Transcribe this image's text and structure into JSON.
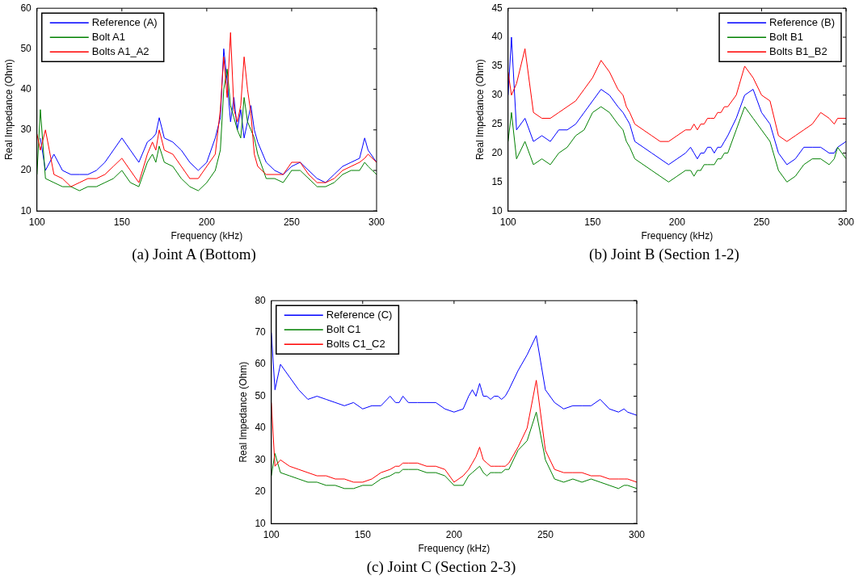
{
  "chart_data": [
    {
      "type": "line",
      "xlabel": "Frequency (kHz)",
      "ylabel": "Real Impedance (Ohm)",
      "annotations": [
        "(a) Joint A (Bottom)"
      ],
      "xlim": [
        100,
        300
      ],
      "xticks": [
        100,
        150,
        200,
        250,
        300
      ],
      "ylim": [
        10,
        60
      ],
      "yticks": [
        10,
        20,
        30,
        40,
        50,
        60
      ],
      "grid": false,
      "legend": "top left",
      "marker": "none",
      "x": [
        100,
        102,
        105,
        110,
        115,
        120,
        125,
        130,
        135,
        140,
        145,
        150,
        155,
        160,
        165,
        168,
        170,
        172,
        175,
        180,
        185,
        190,
        195,
        200,
        205,
        208,
        210,
        212,
        214,
        216,
        218,
        220,
        222,
        224,
        226,
        228,
        230,
        235,
        240,
        245,
        250,
        255,
        260,
        265,
        270,
        275,
        280,
        285,
        290,
        293,
        295,
        300
      ],
      "series": [
        {
          "name": "Reference (A)",
          "color": "#0000ff",
          "values": [
            null,
            28,
            20,
            24,
            20,
            19,
            19,
            19,
            20,
            22,
            25,
            28,
            25,
            22,
            27,
            28,
            29,
            33,
            28,
            27,
            25,
            22,
            20,
            22,
            28,
            33,
            50,
            42,
            32,
            38,
            30,
            35,
            28,
            32,
            36,
            30,
            27,
            22,
            20,
            19,
            21,
            22,
            20,
            18,
            17,
            19,
            21,
            22,
            23,
            28,
            25,
            22
          ]
        },
        {
          "name": "Bolt A1",
          "color": "#008000",
          "values": [
            19,
            35,
            18,
            17,
            16,
            16,
            15,
            16,
            16,
            17,
            18,
            20,
            17,
            16,
            22,
            24,
            22,
            26,
            22,
            21,
            18,
            16,
            15,
            17,
            20,
            25,
            40,
            45,
            36,
            33,
            30,
            28,
            38,
            32,
            30,
            28,
            24,
            18,
            18,
            17,
            20,
            20,
            18,
            16,
            16,
            17,
            19,
            20,
            20,
            22,
            21,
            19
          ]
        },
        {
          "name": "Bolts A1_A2",
          "color": "#ff0000",
          "values": [
            29,
            25,
            30,
            19,
            18,
            16,
            17,
            18,
            18,
            19,
            21,
            23,
            20,
            17,
            24,
            27,
            25,
            30,
            25,
            24,
            21,
            18,
            18,
            21,
            24,
            35,
            48,
            38,
            54,
            35,
            32,
            36,
            48,
            40,
            34,
            24,
            21,
            19,
            19,
            19,
            22,
            22,
            19,
            17,
            17,
            18,
            20,
            21,
            22,
            23,
            24,
            22
          ]
        }
      ]
    },
    {
      "type": "line",
      "xlabel": "Frequency (kHz)",
      "ylabel": "Real Impedance (Ohm)",
      "annotations": [
        "(b) Joint B (Section 1-2)"
      ],
      "xlim": [
        100,
        300
      ],
      "xticks": [
        100,
        150,
        200,
        250,
        300
      ],
      "ylim": [
        10,
        45
      ],
      "yticks": [
        10,
        15,
        20,
        25,
        30,
        35,
        40,
        45
      ],
      "grid": false,
      "legend": "top right",
      "marker": "none",
      "x": [
        100,
        102,
        105,
        110,
        115,
        120,
        125,
        130,
        135,
        140,
        145,
        150,
        155,
        160,
        165,
        168,
        170,
        172,
        175,
        180,
        185,
        190,
        195,
        200,
        205,
        208,
        210,
        212,
        214,
        216,
        218,
        220,
        222,
        224,
        226,
        228,
        230,
        235,
        240,
        245,
        250,
        255,
        260,
        265,
        270,
        275,
        280,
        285,
        290,
        293,
        295,
        300
      ],
      "series": [
        {
          "name": "Reference (B)",
          "color": "#0000ff",
          "values": [
            30,
            40,
            24,
            26,
            22,
            23,
            22,
            24,
            24,
            25,
            27,
            29,
            31,
            30,
            28,
            27,
            26,
            25,
            22,
            21,
            20,
            19,
            18,
            19,
            20,
            21,
            20,
            19,
            20,
            20,
            21,
            21,
            20,
            21,
            21,
            22,
            23,
            26,
            30,
            31,
            27,
            25,
            20,
            18,
            19,
            21,
            21,
            21,
            20,
            20,
            21,
            22
          ]
        },
        {
          "name": "Bolt B1",
          "color": "#008000",
          "values": [
            22,
            27,
            19,
            22,
            18,
            19,
            18,
            20,
            21,
            23,
            24,
            27,
            28,
            27,
            25,
            24,
            22,
            21,
            19,
            18,
            17,
            16,
            15,
            16,
            17,
            17,
            16,
            17,
            17,
            18,
            18,
            18,
            18,
            19,
            19,
            20,
            20,
            24,
            28,
            26,
            24,
            22,
            17,
            15,
            16,
            18,
            19,
            19,
            18,
            19,
            21,
            19
          ]
        },
        {
          "name": "Bolts B1_B2",
          "color": "#ff0000",
          "values": [
            34,
            30,
            32,
            38,
            27,
            26,
            26,
            27,
            28,
            29,
            31,
            33,
            36,
            34,
            31,
            30,
            28,
            27,
            25,
            24,
            23,
            22,
            22,
            23,
            24,
            24,
            25,
            24,
            25,
            25,
            26,
            26,
            26,
            27,
            27,
            28,
            28,
            30,
            35,
            33,
            30,
            29,
            23,
            22,
            23,
            24,
            25,
            27,
            26,
            25,
            26,
            26
          ]
        }
      ]
    },
    {
      "type": "line",
      "xlabel": "Frequency (kHz)",
      "ylabel": "Real Impedance (Ohm)",
      "annotations": [
        "(c) Joint C (Section 2-3)"
      ],
      "xlim": [
        100,
        300
      ],
      "xticks": [
        100,
        150,
        200,
        250,
        300
      ],
      "ylim": [
        10,
        80
      ],
      "yticks": [
        10,
        20,
        30,
        40,
        50,
        60,
        70,
        80
      ],
      "grid": false,
      "legend": "top left",
      "marker": "none",
      "x": [
        100,
        102,
        105,
        110,
        115,
        120,
        125,
        130,
        135,
        140,
        145,
        150,
        155,
        160,
        165,
        168,
        170,
        172,
        175,
        180,
        185,
        190,
        195,
        200,
        205,
        208,
        210,
        212,
        214,
        216,
        218,
        220,
        222,
        224,
        226,
        228,
        230,
        235,
        240,
        245,
        250,
        255,
        260,
        265,
        270,
        275,
        280,
        285,
        290,
        293,
        295,
        300
      ],
      "series": [
        {
          "name": "Reference (C)",
          "color": "#0000ff",
          "values": [
            70,
            52,
            60,
            56,
            52,
            49,
            50,
            49,
            48,
            47,
            48,
            46,
            47,
            47,
            50,
            48,
            48,
            50,
            48,
            48,
            48,
            48,
            46,
            45,
            46,
            50,
            52,
            50,
            54,
            50,
            50,
            49,
            50,
            50,
            49,
            50,
            52,
            58,
            63,
            69,
            52,
            48,
            46,
            47,
            47,
            47,
            49,
            46,
            45,
            46,
            45,
            44
          ]
        },
        {
          "name": "Bolt C1",
          "color": "#008000",
          "values": [
            25,
            32,
            26,
            25,
            24,
            23,
            23,
            22,
            22,
            21,
            21,
            22,
            22,
            24,
            25,
            26,
            26,
            27,
            27,
            27,
            26,
            26,
            25,
            22,
            22,
            25,
            26,
            27,
            28,
            26,
            25,
            26,
            26,
            26,
            26,
            27,
            27,
            33,
            36,
            45,
            30,
            24,
            23,
            24,
            23,
            24,
            23,
            22,
            21,
            22,
            22,
            21
          ]
        },
        {
          "name": "Bolts C1_C2",
          "color": "#ff0000",
          "values": [
            48,
            28,
            30,
            28,
            27,
            26,
            25,
            25,
            24,
            24,
            23,
            23,
            24,
            26,
            27,
            28,
            28,
            29,
            29,
            29,
            28,
            28,
            27,
            23,
            25,
            27,
            29,
            31,
            34,
            30,
            29,
            28,
            28,
            28,
            28,
            28,
            29,
            34,
            40,
            55,
            33,
            27,
            26,
            26,
            26,
            25,
            25,
            24,
            24,
            24,
            24,
            23
          ]
        }
      ]
    }
  ]
}
